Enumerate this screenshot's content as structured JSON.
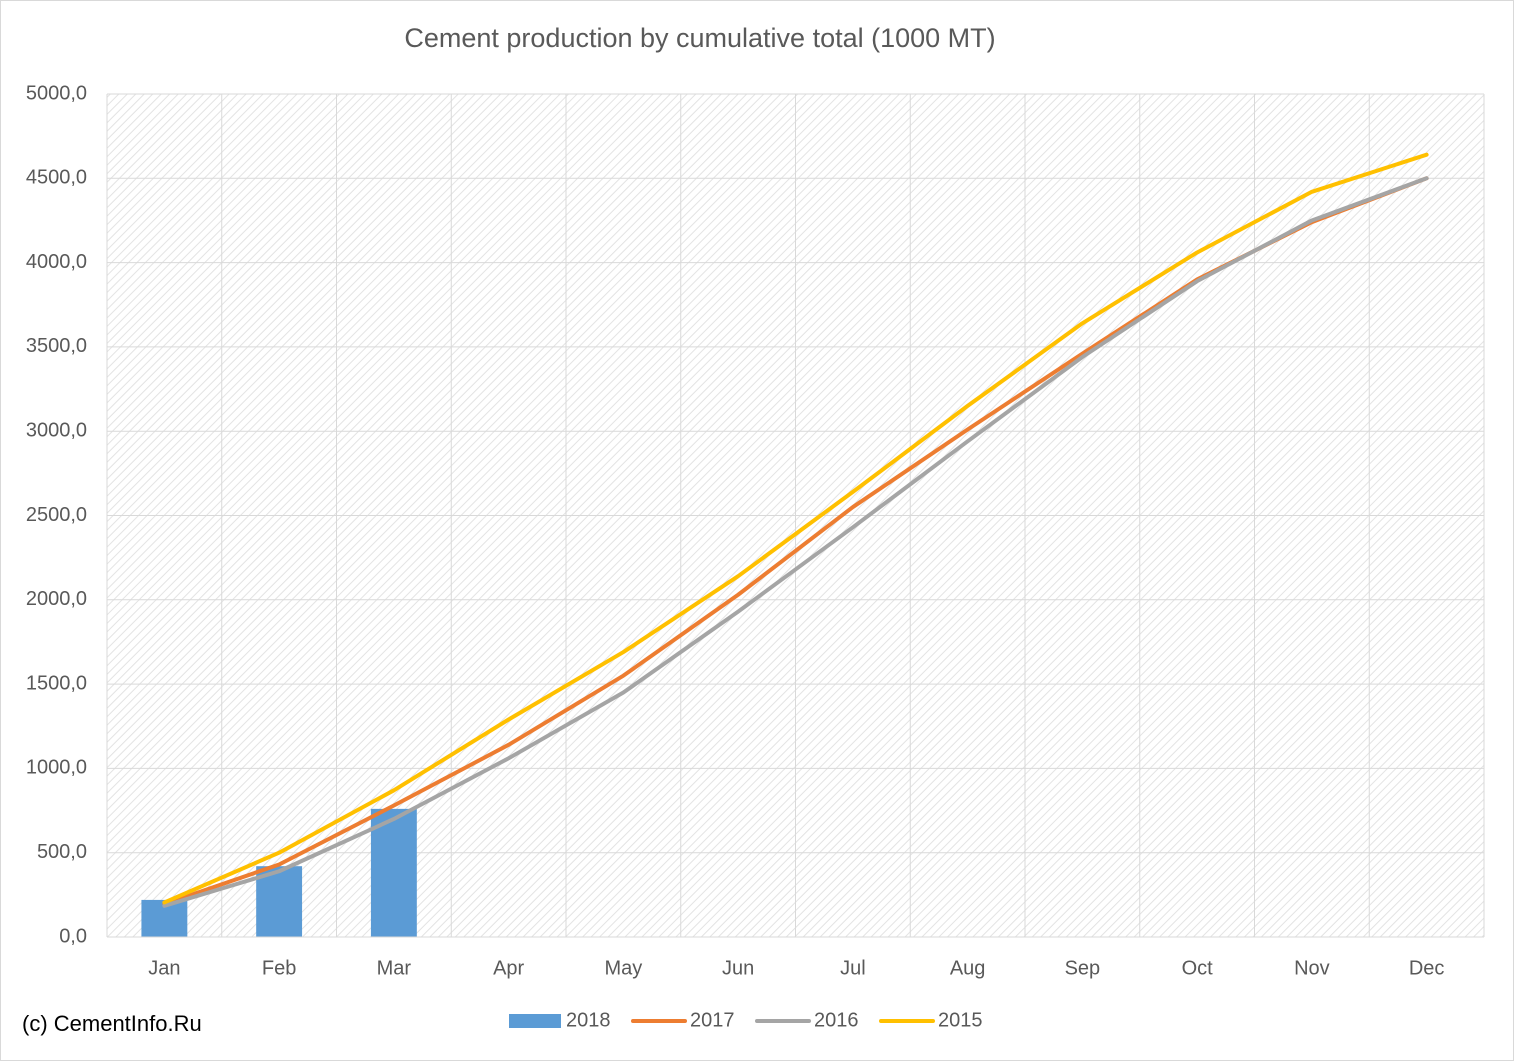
{
  "chart_data": {
    "type": "bar-line",
    "title": "Cement production by cumulative total (1000 MT)",
    "annotation": "(c) CementInfo.Ru",
    "categories": [
      "Jan",
      "Feb",
      "Mar",
      "Apr",
      "May",
      "Jun",
      "Jul",
      "Aug",
      "Sep",
      "Oct",
      "Nov",
      "Dec"
    ],
    "series": [
      {
        "name": "2018",
        "type": "bar",
        "color": "#5b9bd5",
        "values": [
          220,
          420,
          760,
          null,
          null,
          null,
          null,
          null,
          null,
          null,
          null,
          null
        ]
      },
      {
        "name": "2017",
        "type": "line",
        "color": "#ed7d31",
        "values": [
          195,
          430,
          780,
          1140,
          1550,
          2030,
          2550,
          3010,
          3460,
          3900,
          4240,
          4500
        ]
      },
      {
        "name": "2016",
        "type": "line",
        "color": "#a5a5a5",
        "values": [
          185,
          390,
          700,
          1060,
          1450,
          1930,
          2430,
          2940,
          3440,
          3890,
          4250,
          4500
        ]
      },
      {
        "name": "2015",
        "type": "line",
        "color": "#ffc000",
        "values": [
          205,
          500,
          870,
          1290,
          1690,
          2140,
          2640,
          3150,
          3640,
          4060,
          4420,
          4640
        ]
      }
    ],
    "ylim": [
      0,
      5000
    ],
    "yticks": [
      {
        "value": 0,
        "label": "0,0"
      },
      {
        "value": 500,
        "label": "500,0"
      },
      {
        "value": 1000,
        "label": "1000,0"
      },
      {
        "value": 1500,
        "label": "1500,0"
      },
      {
        "value": 2000,
        "label": "2000,0"
      },
      {
        "value": 2500,
        "label": "2500,0"
      },
      {
        "value": 3000,
        "label": "3000,0"
      },
      {
        "value": 3500,
        "label": "3500,0"
      },
      {
        "value": 4000,
        "label": "4000,0"
      },
      {
        "value": 4500,
        "label": "4500,0"
      },
      {
        "value": 5000,
        "label": "5000,0"
      }
    ],
    "grid": true,
    "legend": "bottom"
  }
}
